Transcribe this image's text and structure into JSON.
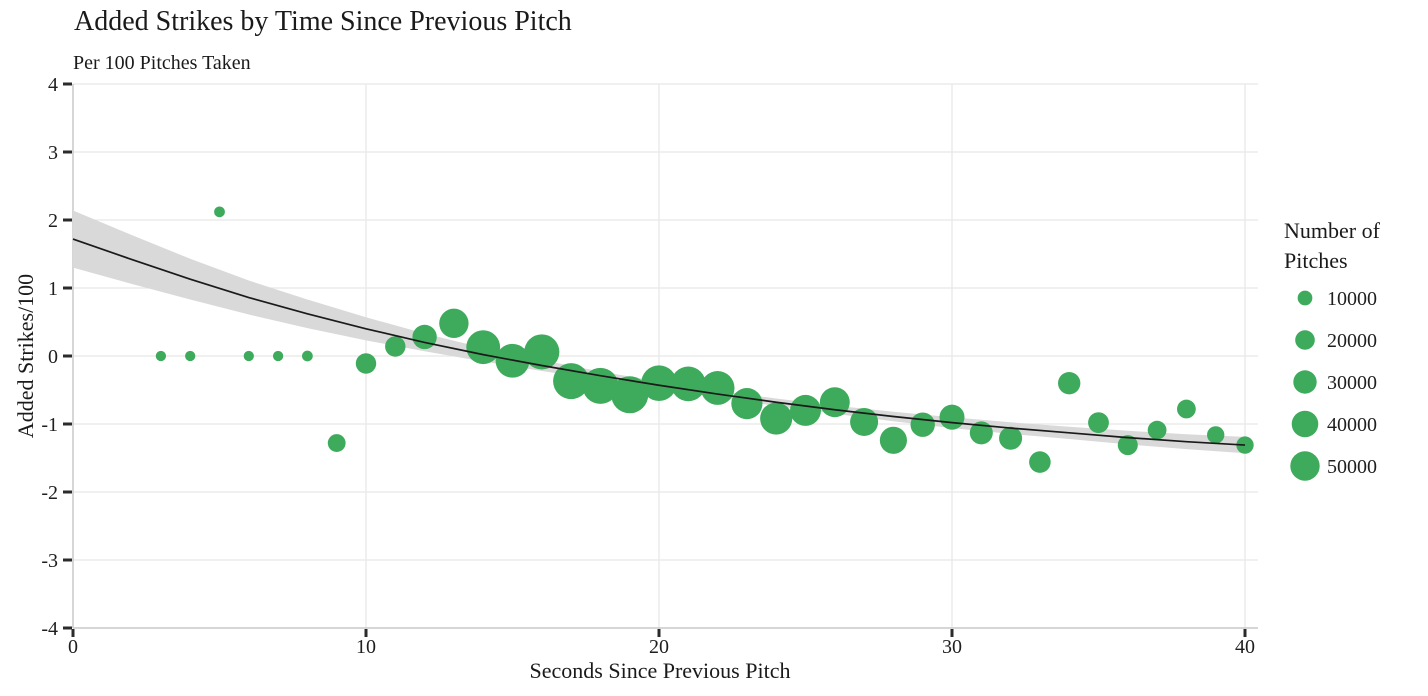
{
  "chart_data": {
    "type": "scatter",
    "title": "Added Strikes by Time Since Previous Pitch",
    "subtitle": "Per 100 Pitches Taken",
    "xlabel": "Seconds Since Previous Pitch",
    "ylabel": "Added Strikes/100",
    "xlim": [
      0,
      40
    ],
    "ylim": [
      -4,
      4
    ],
    "x_ticks": [
      0,
      10,
      20,
      30,
      40
    ],
    "y_ticks": [
      -4,
      -3,
      -2,
      -1,
      0,
      1,
      2,
      3,
      4
    ],
    "grid": true,
    "legend_position": "right",
    "colors": {
      "point": "#3eab5c",
      "trend_line": "#1a1a1a",
      "confidence_band": "#d9d9d9",
      "gridline": "#e8e8e8",
      "axis_line": "#c9c9c9",
      "tick_mark": "#2b2b2b"
    },
    "legend": {
      "title_lines": [
        "Number of",
        "Pitches"
      ],
      "entries": [
        10000,
        20000,
        30000,
        40000,
        50000
      ]
    },
    "points": [
      {
        "x": 3,
        "y": 0.0,
        "n": 4000
      },
      {
        "x": 4,
        "y": 0.0,
        "n": 4000
      },
      {
        "x": 5,
        "y": 2.12,
        "n": 4500
      },
      {
        "x": 6,
        "y": 0.0,
        "n": 4000
      },
      {
        "x": 7,
        "y": 0.0,
        "n": 4000
      },
      {
        "x": 8,
        "y": 0.0,
        "n": 4500
      },
      {
        "x": 9,
        "y": -1.28,
        "n": 16000
      },
      {
        "x": 10,
        "y": -0.11,
        "n": 22000
      },
      {
        "x": 11,
        "y": 0.14,
        "n": 22000
      },
      {
        "x": 12,
        "y": 0.28,
        "n": 33000
      },
      {
        "x": 13,
        "y": 0.48,
        "n": 50000
      },
      {
        "x": 14,
        "y": 0.13,
        "n": 68000
      },
      {
        "x": 15,
        "y": -0.07,
        "n": 68000
      },
      {
        "x": 16,
        "y": 0.06,
        "n": 74000
      },
      {
        "x": 17,
        "y": -0.37,
        "n": 78000
      },
      {
        "x": 18,
        "y": -0.44,
        "n": 78000
      },
      {
        "x": 19,
        "y": -0.57,
        "n": 83000
      },
      {
        "x": 20,
        "y": -0.4,
        "n": 76000
      },
      {
        "x": 21,
        "y": -0.41,
        "n": 72000
      },
      {
        "x": 22,
        "y": -0.47,
        "n": 68000
      },
      {
        "x": 23,
        "y": -0.7,
        "n": 57000
      },
      {
        "x": 24,
        "y": -0.92,
        "n": 61000
      },
      {
        "x": 25,
        "y": -0.8,
        "n": 56000
      },
      {
        "x": 26,
        "y": -0.68,
        "n": 52000
      },
      {
        "x": 27,
        "y": -0.97,
        "n": 45000
      },
      {
        "x": 28,
        "y": -1.24,
        "n": 42000
      },
      {
        "x": 29,
        "y": -1.01,
        "n": 33000
      },
      {
        "x": 30,
        "y": -0.9,
        "n": 35000
      },
      {
        "x": 31,
        "y": -1.13,
        "n": 29000
      },
      {
        "x": 32,
        "y": -1.21,
        "n": 29000
      },
      {
        "x": 33,
        "y": -1.56,
        "n": 25000
      },
      {
        "x": 34,
        "y": -0.4,
        "n": 27000
      },
      {
        "x": 35,
        "y": -0.98,
        "n": 23000
      },
      {
        "x": 36,
        "y": -1.31,
        "n": 21000
      },
      {
        "x": 37,
        "y": -1.09,
        "n": 18000
      },
      {
        "x": 38,
        "y": -0.78,
        "n": 18000
      },
      {
        "x": 39,
        "y": -1.16,
        "n": 15000
      },
      {
        "x": 40,
        "y": -1.31,
        "n": 15000
      }
    ],
    "trend": {
      "x": [
        0,
        2,
        4,
        6,
        8,
        10,
        12,
        14,
        16,
        18,
        20,
        22,
        24,
        26,
        28,
        30,
        32,
        34,
        36,
        38,
        40
      ],
      "y": [
        1.72,
        1.42,
        1.13,
        0.86,
        0.62,
        0.4,
        0.2,
        0.02,
        -0.14,
        -0.29,
        -0.43,
        -0.56,
        -0.68,
        -0.79,
        -0.89,
        -0.98,
        -1.06,
        -1.13,
        -1.2,
        -1.26,
        -1.31
      ],
      "ci_halfwidth": [
        0.42,
        0.36,
        0.3,
        0.25,
        0.21,
        0.17,
        0.13,
        0.1,
        0.08,
        0.062,
        0.055,
        0.05,
        0.055,
        0.06,
        0.07,
        0.08,
        0.085,
        0.09,
        0.1,
        0.11,
        0.12
      ]
    }
  }
}
